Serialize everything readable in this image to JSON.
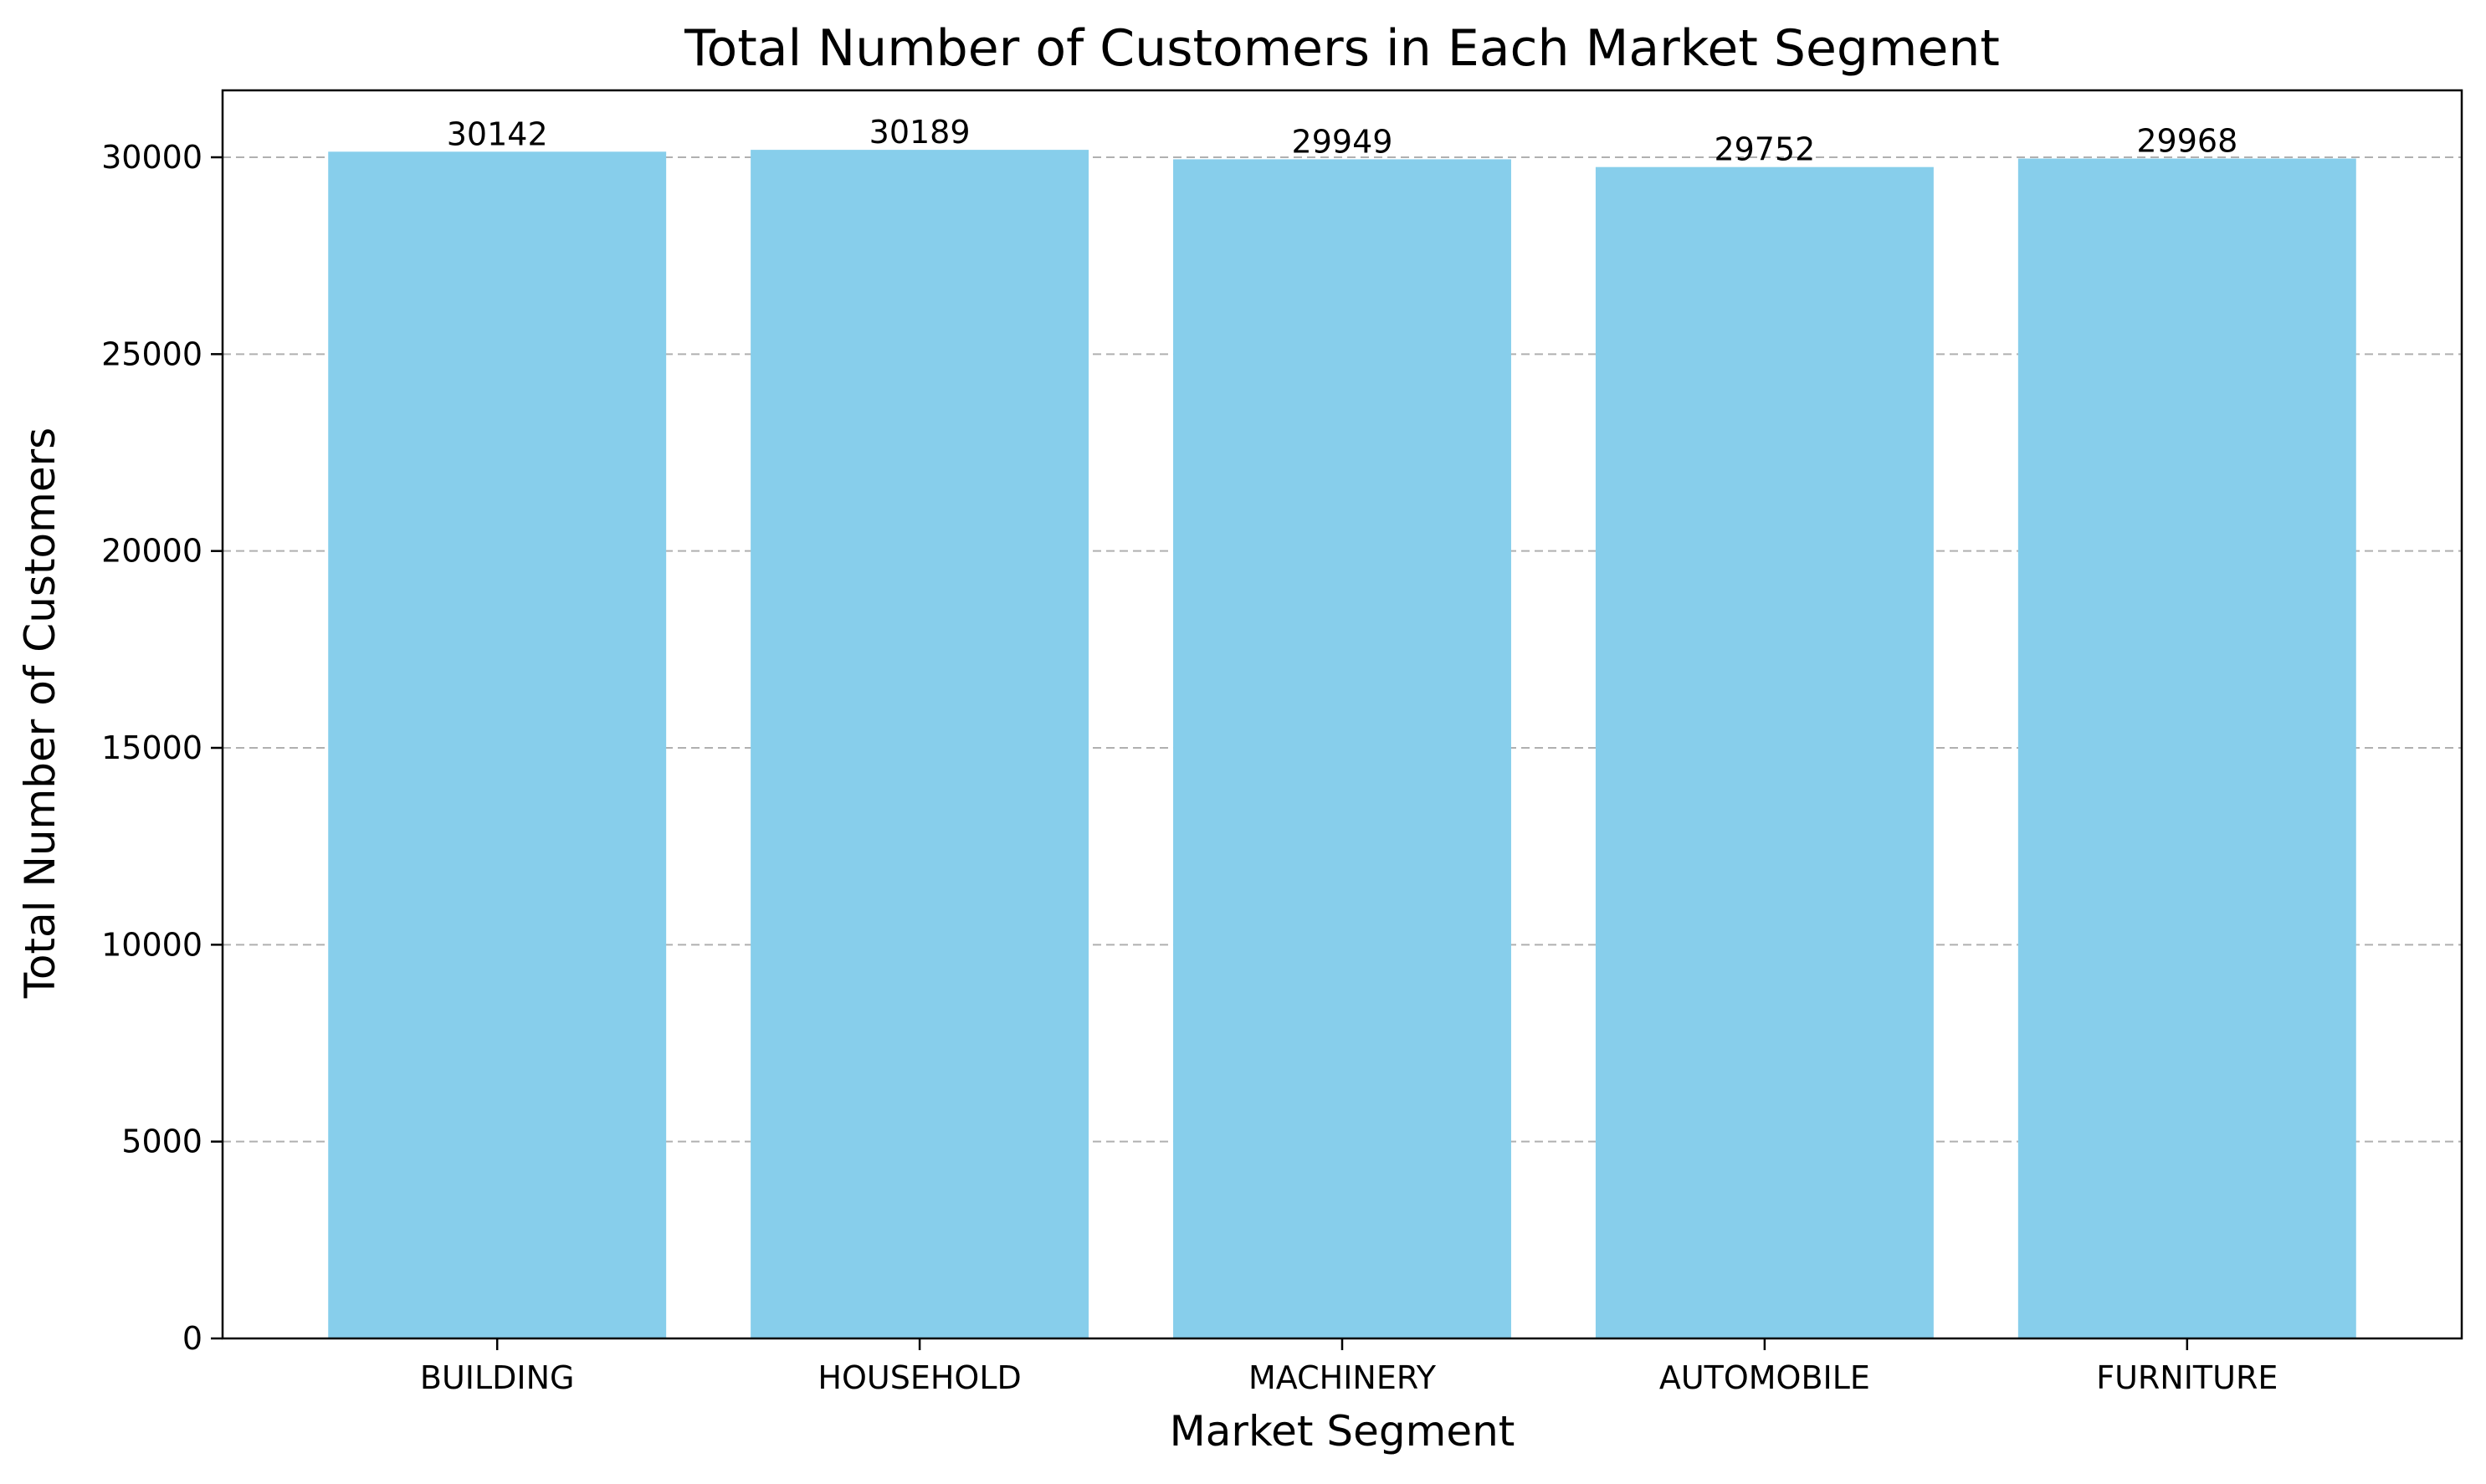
{
  "chart_data": {
    "type": "bar",
    "title": "Total Number of Customers in Each Market Segment",
    "xlabel": "Market Segment",
    "ylabel": "Total Number of Customers",
    "categories": [
      "BUILDING",
      "HOUSEHOLD",
      "MACHINERY",
      "AUTOMOBILE",
      "FURNITURE"
    ],
    "values": [
      30142,
      30189,
      29949,
      29752,
      29968
    ],
    "data_labels": [
      "30142",
      "30189",
      "29949",
      "29752",
      "29968"
    ],
    "ylim": [
      0,
      31700
    ],
    "yticks": [
      0,
      5000,
      10000,
      15000,
      20000,
      25000,
      30000
    ],
    "ytick_labels": [
      "0",
      "5000",
      "10000",
      "15000",
      "20000",
      "25000",
      "30000"
    ],
    "grid": "y-dashed",
    "bar_color": "#87ceeb"
  }
}
